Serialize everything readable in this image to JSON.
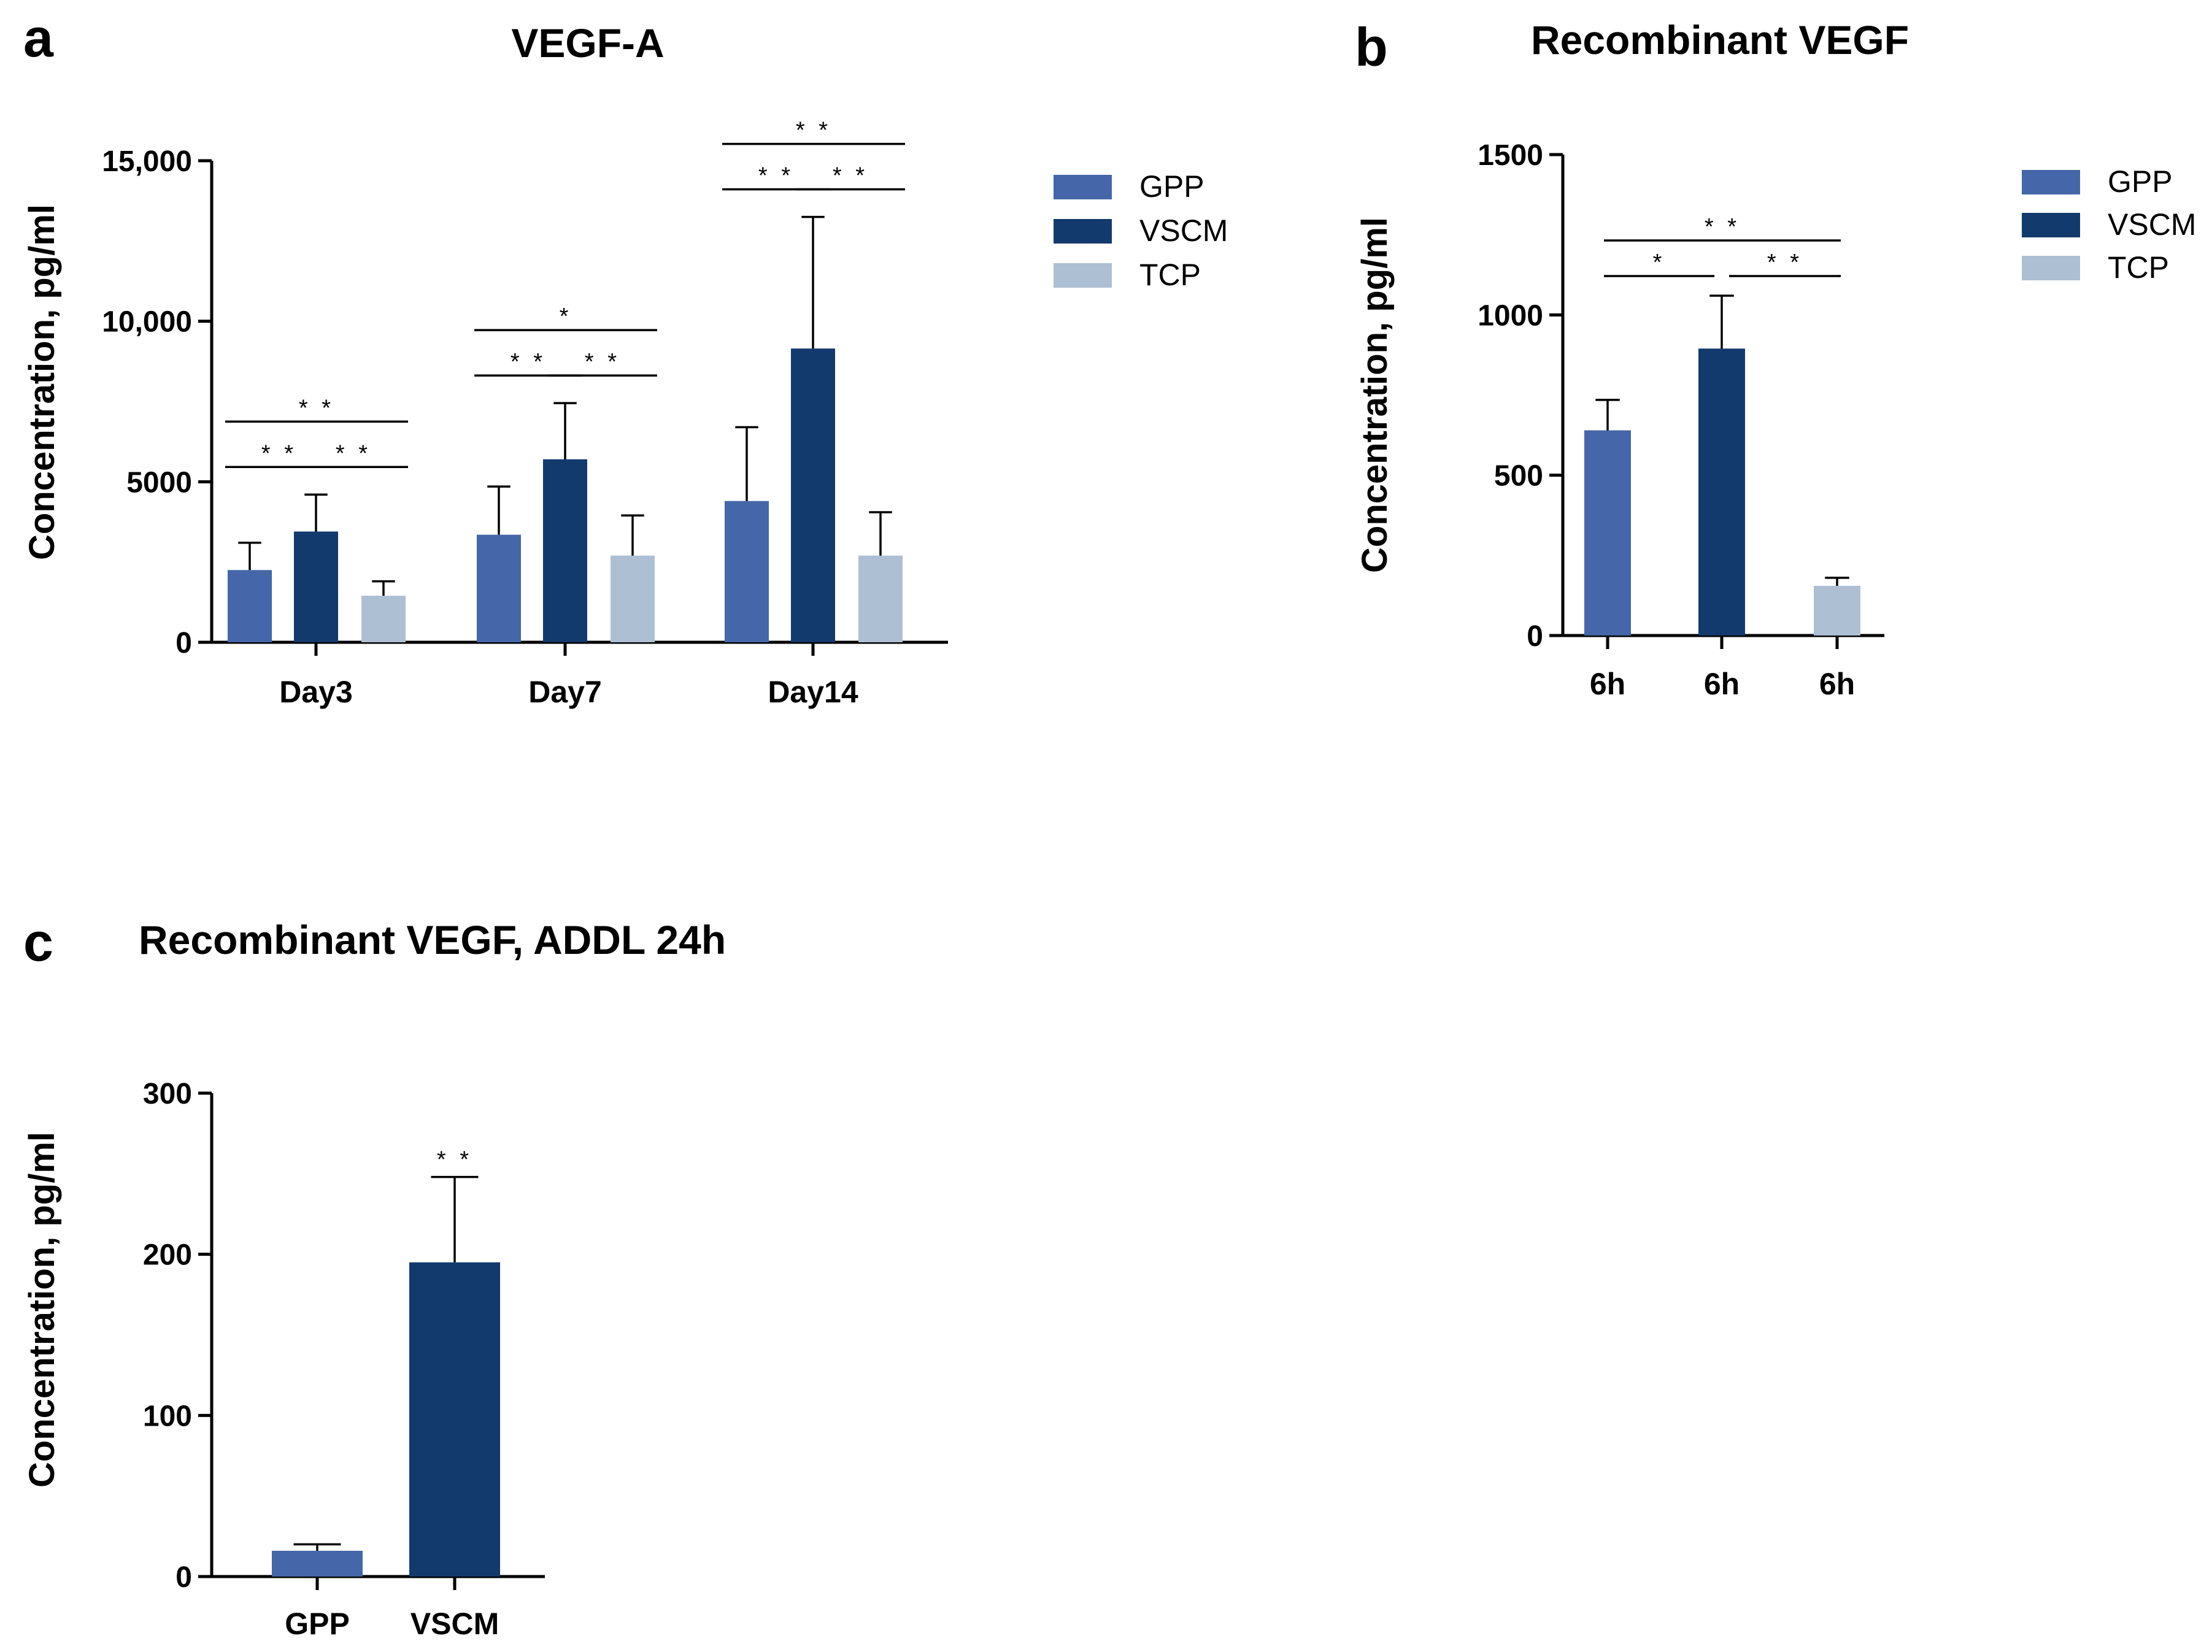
{
  "colors": {
    "GPP": "#4566a8",
    "VSCM": "#133a6d",
    "TCP": "#adbfd2"
  },
  "panel_letters": {
    "a": "a",
    "b": "b",
    "c": "c"
  },
  "chart_data": [
    {
      "id": "a",
      "type": "bar",
      "title": "VEGF-A",
      "xlabel": "",
      "ylabel": "Concentration, pg/ml",
      "ylim": [
        0,
        15000
      ],
      "yticks": [
        {
          "value": 0,
          "label": "0"
        },
        {
          "value": 5000,
          "label": "5000"
        },
        {
          "value": 10000,
          "label": "10,000"
        },
        {
          "value": 15000,
          "label": "15,000"
        }
      ],
      "categories": [
        "Day3",
        "Day7",
        "Day14"
      ],
      "series": [
        {
          "name": "GPP",
          "values": [
            2250,
            3350,
            4400
          ],
          "errors": [
            850,
            1500,
            2300
          ]
        },
        {
          "name": "VSCM",
          "values": [
            3450,
            5700,
            9150
          ],
          "errors": [
            1150,
            1750,
            4100
          ]
        },
        {
          "name": "TCP",
          "values": [
            1450,
            2700,
            2700
          ],
          "errors": [
            450,
            1250,
            1350
          ]
        }
      ],
      "legend": [
        "GPP",
        "VSCM",
        "TCP"
      ],
      "legend_position": "top-right",
      "significance": [
        {
          "category": 0,
          "from": 0,
          "to": 1,
          "label": "* *",
          "level": 1
        },
        {
          "category": 0,
          "from": 1,
          "to": 2,
          "label": "* *",
          "level": 1
        },
        {
          "category": 0,
          "from": 0,
          "to": 2,
          "label": "* *",
          "level": 2
        },
        {
          "category": 1,
          "from": 0,
          "to": 1,
          "label": "* *",
          "level": 1
        },
        {
          "category": 1,
          "from": 1,
          "to": 2,
          "label": "* *",
          "level": 1
        },
        {
          "category": 1,
          "from": 0,
          "to": 2,
          "label": "*",
          "level": 2
        },
        {
          "category": 2,
          "from": 0,
          "to": 1,
          "label": "* *",
          "level": 1
        },
        {
          "category": 2,
          "from": 1,
          "to": 2,
          "label": "* *",
          "level": 1
        },
        {
          "category": 2,
          "from": 0,
          "to": 2,
          "label": "* *",
          "level": 2
        }
      ]
    },
    {
      "id": "b",
      "type": "bar",
      "title": "Recombinant VEGF",
      "xlabel": "",
      "ylabel": "Concentration, pg/ml",
      "ylim": [
        0,
        1500
      ],
      "yticks": [
        {
          "value": 0,
          "label": "0"
        },
        {
          "value": 500,
          "label": "500"
        },
        {
          "value": 1000,
          "label": "1000"
        },
        {
          "value": 1500,
          "label": "1500"
        }
      ],
      "categories": [
        "6h",
        "6h",
        "6h"
      ],
      "bars": [
        {
          "name": "GPP",
          "value": 640,
          "error": 95
        },
        {
          "name": "VSCM",
          "value": 895,
          "error": 165
        },
        {
          "name": "TCP",
          "value": 155,
          "error": 25
        }
      ],
      "legend": [
        "GPP",
        "VSCM",
        "TCP"
      ],
      "legend_position": "top-right",
      "significance": [
        {
          "from": 0,
          "to": 1,
          "label": "*",
          "level": 1
        },
        {
          "from": 1,
          "to": 2,
          "label": "* *",
          "level": 1
        },
        {
          "from": 0,
          "to": 2,
          "label": "* *",
          "level": 2
        }
      ]
    },
    {
      "id": "c",
      "type": "bar",
      "title": "Recombinant VEGF, ADDL 24h",
      "xlabel": "",
      "ylabel": "Concentration, pg/ml",
      "ylim": [
        0,
        300
      ],
      "yticks": [
        {
          "value": 0,
          "label": "0"
        },
        {
          "value": 100,
          "label": "100"
        },
        {
          "value": 200,
          "label": "200"
        },
        {
          "value": 300,
          "label": "300"
        }
      ],
      "categories": [
        "GPP",
        "VSCM"
      ],
      "bars": [
        {
          "name": "GPP",
          "value": 16,
          "error": 4
        },
        {
          "name": "VSCM",
          "value": 195,
          "error": 53
        }
      ],
      "annotations": [
        {
          "bar": 1,
          "label": "* *"
        }
      ]
    }
  ]
}
